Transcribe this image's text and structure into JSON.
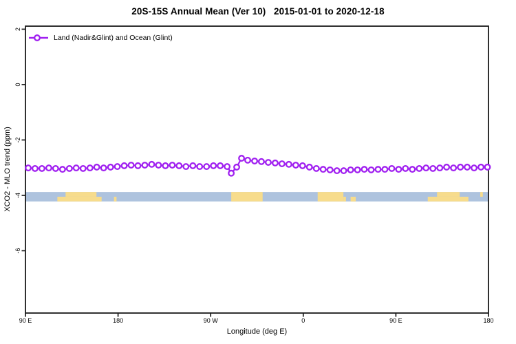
{
  "figure": {
    "background": "#ffffff",
    "axis_color": "#1a1a1a",
    "text_color": "#000000"
  },
  "chart_data": {
    "type": "line",
    "title": "20S-15S Annual Mean (Ver 10)   2015-01-01 to 2020-12-18",
    "xlabel": "Longitude (deg E)",
    "ylabel": "XCO2 - MLO trend (ppm)",
    "xlim": [
      90,
      540
    ],
    "ylim": [
      -8.25,
      2.11
    ],
    "grid": false,
    "legend_position": "top-left-inside",
    "xticks": [
      {
        "v": 90,
        "label": "90 E"
      },
      {
        "v": 180,
        "label": "180"
      },
      {
        "v": 270,
        "label": "90 W"
      },
      {
        "v": 360,
        "label": "0"
      },
      {
        "v": 450,
        "label": "90 E"
      },
      {
        "v": 540,
        "label": "180"
      }
    ],
    "yticks": [
      {
        "v": 2,
        "label": "2"
      },
      {
        "v": 0,
        "label": "0"
      },
      {
        "v": -2,
        "label": "-2"
      },
      {
        "v": -4,
        "label": "-4"
      },
      {
        "v": -6,
        "label": "-6"
      }
    ],
    "series": [
      {
        "name": "Land (Nadir&Glint) and Ocean (Glint)",
        "color": "#A020F0",
        "marker": "open-circle",
        "x": [
          92.7,
          99.3,
          106,
          112.7,
          119.3,
          126,
          132.7,
          139.3,
          146,
          152.7,
          159.3,
          166,
          172.7,
          179.3,
          186,
          192.7,
          199.3,
          206,
          212.7,
          219.3,
          226,
          232.7,
          239.3,
          246,
          252.7,
          259.3,
          266,
          272.7,
          279.3,
          286,
          290,
          295.3,
          300,
          306,
          312.7,
          319.3,
          326,
          332.7,
          339.3,
          346,
          352.7,
          359.3,
          366,
          372.7,
          379.3,
          386,
          392.7,
          399.3,
          406,
          412.7,
          419.3,
          426,
          432.7,
          439.3,
          446,
          452.7,
          459.3,
          466,
          472.7,
          479.3,
          486,
          492.7,
          499.3,
          506,
          512.7,
          519.3,
          526,
          532.7,
          539
        ],
        "y": [
          -3.01,
          -3.03,
          -3.03,
          -3.01,
          -3.03,
          -3.06,
          -3.03,
          -3.01,
          -3.03,
          -3.01,
          -2.98,
          -3.01,
          -2.98,
          -2.96,
          -2.93,
          -2.91,
          -2.93,
          -2.91,
          -2.88,
          -2.91,
          -2.93,
          -2.91,
          -2.93,
          -2.96,
          -2.93,
          -2.96,
          -2.96,
          -2.93,
          -2.93,
          -2.96,
          -3.2,
          -2.98,
          -2.66,
          -2.73,
          -2.76,
          -2.78,
          -2.81,
          -2.83,
          -2.86,
          -2.88,
          -2.91,
          -2.93,
          -2.98,
          -3.03,
          -3.06,
          -3.08,
          -3.11,
          -3.11,
          -3.08,
          -3.08,
          -3.06,
          -3.08,
          -3.06,
          -3.06,
          -3.03,
          -3.06,
          -3.03,
          -3.06,
          -3.03,
          -3.01,
          -3.03,
          -3.01,
          -2.98,
          -3.01,
          -2.98,
          -2.98,
          -3.01,
          -2.98,
          -2.98
        ]
      }
    ],
    "map_strip": {
      "y_range_ppm": [
        -4.22,
        -3.88
      ],
      "ocean_color": "#AEC3DE",
      "land_color": "#F7DC8C",
      "land_patches": [
        {
          "lon0": 121,
          "lon1": 164,
          "row": "bottom"
        },
        {
          "lon0": 129,
          "lon1": 159,
          "row": "top"
        },
        {
          "lon0": 176,
          "lon1": 178.5,
          "row": "bottom"
        },
        {
          "lon0": 290,
          "lon1": 320.5,
          "row": "both"
        },
        {
          "lon0": 374,
          "lon1": 399,
          "row": "both"
        },
        {
          "lon0": 399,
          "lon1": 401.5,
          "row": "bottom"
        },
        {
          "lon0": 406,
          "lon1": 411,
          "row": "bottom"
        },
        {
          "lon0": 481,
          "lon1": 520.5,
          "row": "bottom"
        },
        {
          "lon0": 490,
          "lon1": 512,
          "row": "top"
        },
        {
          "lon0": 532,
          "lon1": 534.5,
          "row": "top"
        }
      ]
    }
  }
}
